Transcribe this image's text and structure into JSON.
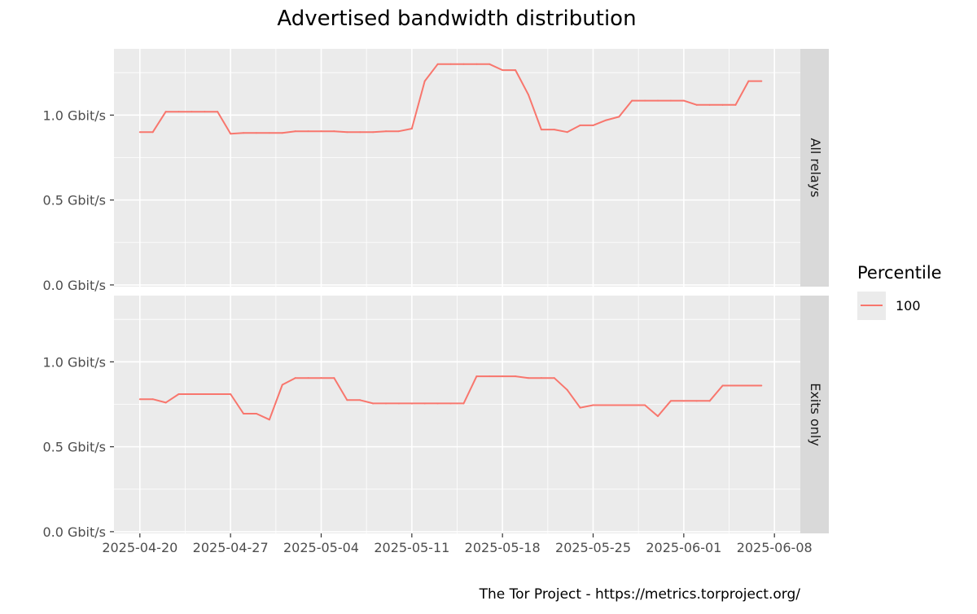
{
  "chart_data": {
    "type": "line",
    "title": "Advertised bandwidth distribution",
    "caption": "The Tor Project - https://metrics.torproject.org/",
    "legend": {
      "title": "Percentile",
      "position": "right",
      "entries": [
        "100"
      ]
    },
    "grid": true,
    "x_ticks": [
      "2025-04-20",
      "2025-04-27",
      "2025-05-04",
      "2025-05-11",
      "2025-05-18",
      "2025-05-25",
      "2025-06-01",
      "2025-06-08"
    ],
    "xlim": [
      "2025-04-18",
      "2025-06-10"
    ],
    "y_ticks": [
      {
        "value": 0.0,
        "label": "0.0 Gbit/s"
      },
      {
        "value": 0.5,
        "label": "0.5 Gbit/s"
      },
      {
        "value": 1.0,
        "label": "1.0 Gbit/s"
      }
    ],
    "ylim": [
      -0.01,
      1.39
    ],
    "unit": "Gbit/s",
    "colors": {
      "line": "#F8766D",
      "panel": "#EBEBEB",
      "strip": "#D9D9D9",
      "grid": "#FFFFFF"
    },
    "facets": [
      {
        "label": "All relays",
        "series": [
          {
            "name": "100",
            "points": [
              [
                "2025-04-20",
                0.9
              ],
              [
                "2025-04-21",
                0.9
              ],
              [
                "2025-04-22",
                1.02
              ],
              [
                "2025-04-23",
                1.02
              ],
              [
                "2025-04-24",
                1.02
              ],
              [
                "2025-04-25",
                1.02
              ],
              [
                "2025-04-26",
                1.02
              ],
              [
                "2025-04-27",
                0.89
              ],
              [
                "2025-04-28",
                0.895
              ],
              [
                "2025-04-29",
                0.895
              ],
              [
                "2025-04-30",
                0.895
              ],
              [
                "2025-05-01",
                0.895
              ],
              [
                "2025-05-02",
                0.905
              ],
              [
                "2025-05-03",
                0.905
              ],
              [
                "2025-05-04",
                0.905
              ],
              [
                "2025-05-05",
                0.905
              ],
              [
                "2025-05-06",
                0.9
              ],
              [
                "2025-05-07",
                0.9
              ],
              [
                "2025-05-08",
                0.9
              ],
              [
                "2025-05-09",
                0.905
              ],
              [
                "2025-05-10",
                0.905
              ],
              [
                "2025-05-11",
                0.92
              ],
              [
                "2025-05-12",
                1.2
              ],
              [
                "2025-05-13",
                1.3
              ],
              [
                "2025-05-14",
                1.3
              ],
              [
                "2025-05-15",
                1.3
              ],
              [
                "2025-05-16",
                1.3
              ],
              [
                "2025-05-17",
                1.3
              ],
              [
                "2025-05-18",
                1.265
              ],
              [
                "2025-05-19",
                1.265
              ],
              [
                "2025-05-20",
                1.12
              ],
              [
                "2025-05-21",
                0.915
              ],
              [
                "2025-05-22",
                0.915
              ],
              [
                "2025-05-23",
                0.9
              ],
              [
                "2025-05-24",
                0.94
              ],
              [
                "2025-05-25",
                0.94
              ],
              [
                "2025-05-26",
                0.97
              ],
              [
                "2025-05-27",
                0.99
              ],
              [
                "2025-05-28",
                1.085
              ],
              [
                "2025-05-29",
                1.085
              ],
              [
                "2025-05-30",
                1.085
              ],
              [
                "2025-05-31",
                1.085
              ],
              [
                "2025-06-01",
                1.085
              ],
              [
                "2025-06-02",
                1.06
              ],
              [
                "2025-06-03",
                1.06
              ],
              [
                "2025-06-04",
                1.06
              ],
              [
                "2025-06-05",
                1.06
              ],
              [
                "2025-06-06",
                1.2
              ],
              [
                "2025-06-07",
                1.2
              ]
            ]
          }
        ]
      },
      {
        "label": "Exits only",
        "series": [
          {
            "name": "100",
            "points": [
              [
                "2025-04-20",
                0.78
              ],
              [
                "2025-04-21",
                0.78
              ],
              [
                "2025-04-22",
                0.76
              ],
              [
                "2025-04-23",
                0.81
              ],
              [
                "2025-04-24",
                0.81
              ],
              [
                "2025-04-25",
                0.81
              ],
              [
                "2025-04-26",
                0.81
              ],
              [
                "2025-04-27",
                0.81
              ],
              [
                "2025-04-28",
                0.695
              ],
              [
                "2025-04-29",
                0.695
              ],
              [
                "2025-04-30",
                0.66
              ],
              [
                "2025-05-01",
                0.865
              ],
              [
                "2025-05-02",
                0.905
              ],
              [
                "2025-05-03",
                0.905
              ],
              [
                "2025-05-04",
                0.905
              ],
              [
                "2025-05-05",
                0.905
              ],
              [
                "2025-05-06",
                0.775
              ],
              [
                "2025-05-07",
                0.775
              ],
              [
                "2025-05-08",
                0.755
              ],
              [
                "2025-05-09",
                0.755
              ],
              [
                "2025-05-10",
                0.755
              ],
              [
                "2025-05-11",
                0.755
              ],
              [
                "2025-05-12",
                0.755
              ],
              [
                "2025-05-13",
                0.755
              ],
              [
                "2025-05-14",
                0.755
              ],
              [
                "2025-05-15",
                0.755
              ],
              [
                "2025-05-16",
                0.915
              ],
              [
                "2025-05-17",
                0.915
              ],
              [
                "2025-05-18",
                0.915
              ],
              [
                "2025-05-19",
                0.915
              ],
              [
                "2025-05-20",
                0.905
              ],
              [
                "2025-05-21",
                0.905
              ],
              [
                "2025-05-22",
                0.905
              ],
              [
                "2025-05-23",
                0.835
              ],
              [
                "2025-05-24",
                0.73
              ],
              [
                "2025-05-25",
                0.745
              ],
              [
                "2025-05-26",
                0.745
              ],
              [
                "2025-05-27",
                0.745
              ],
              [
                "2025-05-28",
                0.745
              ],
              [
                "2025-05-29",
                0.745
              ],
              [
                "2025-05-30",
                0.68
              ],
              [
                "2025-05-31",
                0.77
              ],
              [
                "2025-06-01",
                0.77
              ],
              [
                "2025-06-02",
                0.77
              ],
              [
                "2025-06-03",
                0.77
              ],
              [
                "2025-06-04",
                0.86
              ],
              [
                "2025-06-05",
                0.86
              ],
              [
                "2025-06-06",
                0.86
              ],
              [
                "2025-06-07",
                0.86
              ]
            ]
          }
        ]
      }
    ]
  }
}
